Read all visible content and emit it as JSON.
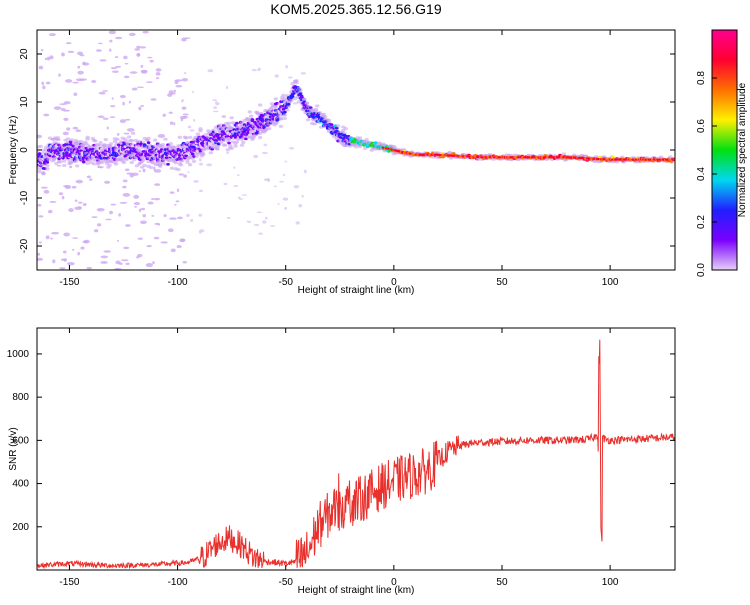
{
  "title": "KOM5.2025.365.12.56.G19",
  "chart_data": [
    {
      "type": "heatmap",
      "xlabel": "Height of straight line (km)",
      "ylabel": "Frequency (Hz)",
      "xlim": [
        -165,
        130
      ],
      "ylim": [
        -25,
        25
      ],
      "xticks": [
        -150,
        -100,
        -50,
        0,
        50,
        100
      ],
      "yticks": [
        -20,
        -10,
        0,
        10,
        20
      ],
      "colorbar": {
        "label": "Normalized spectral amplitude",
        "ticks": [
          "0.0",
          "0.2",
          "0.4",
          "0.6",
          "0.8"
        ],
        "range": [
          0,
          1
        ],
        "colormap": [
          "#e6d0f6",
          "#7a00ff",
          "#2020ff",
          "#00d8f0",
          "#00e010",
          "#fff000",
          "#ff7000",
          "#ff0030",
          "#ff0090"
        ]
      },
      "ridge": [
        {
          "x": -160,
          "f": 0
        },
        {
          "x": -140,
          "f": -1
        },
        {
          "x": -120,
          "f": 0
        },
        {
          "x": -100,
          "f": -1
        },
        {
          "x": -90,
          "f": 1
        },
        {
          "x": -80,
          "f": 3
        },
        {
          "x": -70,
          "f": 4
        },
        {
          "x": -60,
          "f": 6
        },
        {
          "x": -50,
          "f": 9
        },
        {
          "x": -45,
          "f": 13
        },
        {
          "x": -40,
          "f": 8
        },
        {
          "x": -35,
          "f": 7
        },
        {
          "x": -30,
          "f": 5
        },
        {
          "x": -25,
          "f": 3
        },
        {
          "x": -20,
          "f": 2
        },
        {
          "x": -10,
          "f": 1
        },
        {
          "x": 0,
          "f": 0
        },
        {
          "x": 10,
          "f": -1
        },
        {
          "x": 20,
          "f": -1
        },
        {
          "x": 40,
          "f": -1.5
        },
        {
          "x": 60,
          "f": -1.5
        },
        {
          "x": 80,
          "f": -1.5
        },
        {
          "x": 100,
          "f": -2
        },
        {
          "x": 130,
          "f": -2
        }
      ]
    },
    {
      "type": "line",
      "xlabel": "Height of straight line (km)",
      "ylabel": "SNR (v/v)",
      "xlim": [
        -165,
        130
      ],
      "ylim": [
        0,
        1120
      ],
      "xticks": [
        -150,
        -100,
        -50,
        0,
        50,
        100
      ],
      "yticks": [
        200,
        400,
        600,
        800,
        1000
      ],
      "color": "#e8302c",
      "series": [
        {
          "values": [
            {
              "x": -165,
              "y": 20
            },
            {
              "x": -150,
              "y": 30
            },
            {
              "x": -130,
              "y": 20
            },
            {
              "x": -110,
              "y": 25
            },
            {
              "x": -95,
              "y": 35
            },
            {
              "x": -88,
              "y": 60
            },
            {
              "x": -82,
              "y": 120
            },
            {
              "x": -76,
              "y": 150
            },
            {
              "x": -70,
              "y": 110
            },
            {
              "x": -65,
              "y": 60
            },
            {
              "x": -60,
              "y": 40
            },
            {
              "x": -50,
              "y": 30
            },
            {
              "x": -45,
              "y": 40
            },
            {
              "x": -40,
              "y": 80
            },
            {
              "x": -35,
              "y": 200
            },
            {
              "x": -28,
              "y": 280
            },
            {
              "x": -22,
              "y": 300
            },
            {
              "x": -15,
              "y": 330
            },
            {
              "x": -10,
              "y": 360
            },
            {
              "x": -5,
              "y": 390
            },
            {
              "x": 0,
              "y": 410
            },
            {
              "x": 5,
              "y": 430
            },
            {
              "x": 10,
              "y": 440
            },
            {
              "x": 15,
              "y": 460
            },
            {
              "x": 20,
              "y": 500
            },
            {
              "x": 25,
              "y": 550
            },
            {
              "x": 30,
              "y": 575
            },
            {
              "x": 35,
              "y": 585
            },
            {
              "x": 40,
              "y": 590
            },
            {
              "x": 50,
              "y": 595
            },
            {
              "x": 60,
              "y": 600
            },
            {
              "x": 70,
              "y": 600
            },
            {
              "x": 80,
              "y": 600
            },
            {
              "x": 90,
              "y": 605
            },
            {
              "x": 94,
              "y": 620
            },
            {
              "x": 96,
              "y": 610
            },
            {
              "x": 100,
              "y": 600
            },
            {
              "x": 110,
              "y": 605
            },
            {
              "x": 120,
              "y": 610
            },
            {
              "x": 130,
              "y": 615
            }
          ]
        }
      ]
    }
  ]
}
